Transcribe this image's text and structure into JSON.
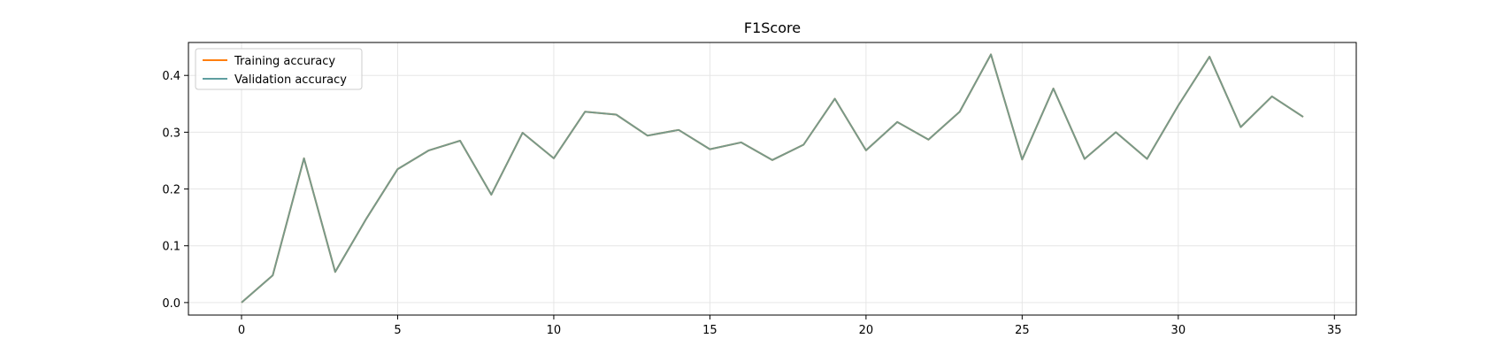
{
  "chart_data": {
    "type": "line",
    "title": "F1Score",
    "xlabel": "",
    "ylabel": "",
    "xlim": [
      -1.7,
      35.7
    ],
    "ylim": [
      -0.022,
      0.458
    ],
    "xticks": [
      0,
      5,
      10,
      15,
      20,
      25,
      30,
      35
    ],
    "yticks": [
      0.0,
      0.1,
      0.2,
      0.3,
      0.4
    ],
    "xtick_labels": [
      "0",
      "5",
      "10",
      "15",
      "20",
      "25",
      "30",
      "35"
    ],
    "ytick_labels": [
      "0.0",
      "0.1",
      "0.2",
      "0.3",
      "0.4"
    ],
    "grid": true,
    "legend_position": "top-left",
    "x": [
      0,
      1,
      2,
      3,
      4,
      5,
      6,
      7,
      8,
      9,
      10,
      11,
      12,
      13,
      14,
      15,
      16,
      17,
      18,
      19,
      20,
      21,
      22,
      23,
      24,
      25,
      26,
      27,
      28,
      29,
      30,
      31,
      32,
      33,
      34
    ],
    "series": [
      {
        "name": "Training accuracy",
        "color": "#ff7f0e",
        "values": [
          0.0,
          0.048,
          0.254,
          0.054,
          0.148,
          0.235,
          0.268,
          0.285,
          0.19,
          0.299,
          0.254,
          0.336,
          0.331,
          0.294,
          0.304,
          0.27,
          0.282,
          0.251,
          0.278,
          0.359,
          0.268,
          0.318,
          0.287,
          0.336,
          0.437,
          0.252,
          0.377,
          0.253,
          0.3,
          0.253,
          0.347,
          0.433,
          0.309,
          0.363,
          0.327
        ]
      },
      {
        "name": "Validation accuracy",
        "color": "#5f9ea0",
        "values": [
          0.0,
          0.048,
          0.254,
          0.054,
          0.148,
          0.235,
          0.268,
          0.285,
          0.19,
          0.299,
          0.254,
          0.336,
          0.331,
          0.294,
          0.304,
          0.27,
          0.282,
          0.251,
          0.278,
          0.359,
          0.268,
          0.318,
          0.287,
          0.336,
          0.437,
          0.252,
          0.377,
          0.253,
          0.3,
          0.253,
          0.347,
          0.433,
          0.309,
          0.363,
          0.327
        ]
      }
    ]
  }
}
